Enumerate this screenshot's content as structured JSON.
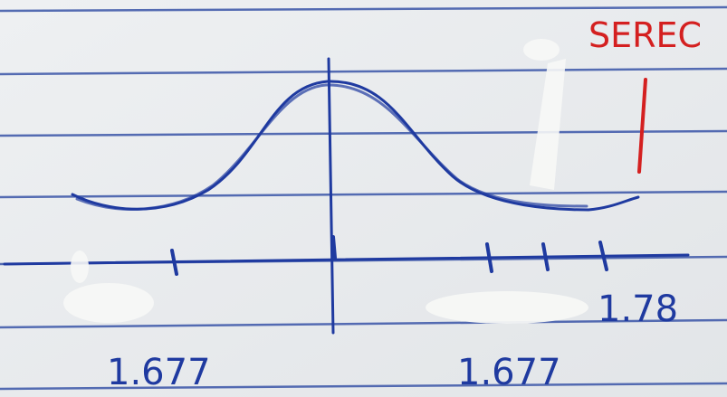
{
  "note": {
    "red_label": "SEREC",
    "right_value": "1.78",
    "left_bottom": "1.677",
    "right_bottom": "1.677"
  }
}
